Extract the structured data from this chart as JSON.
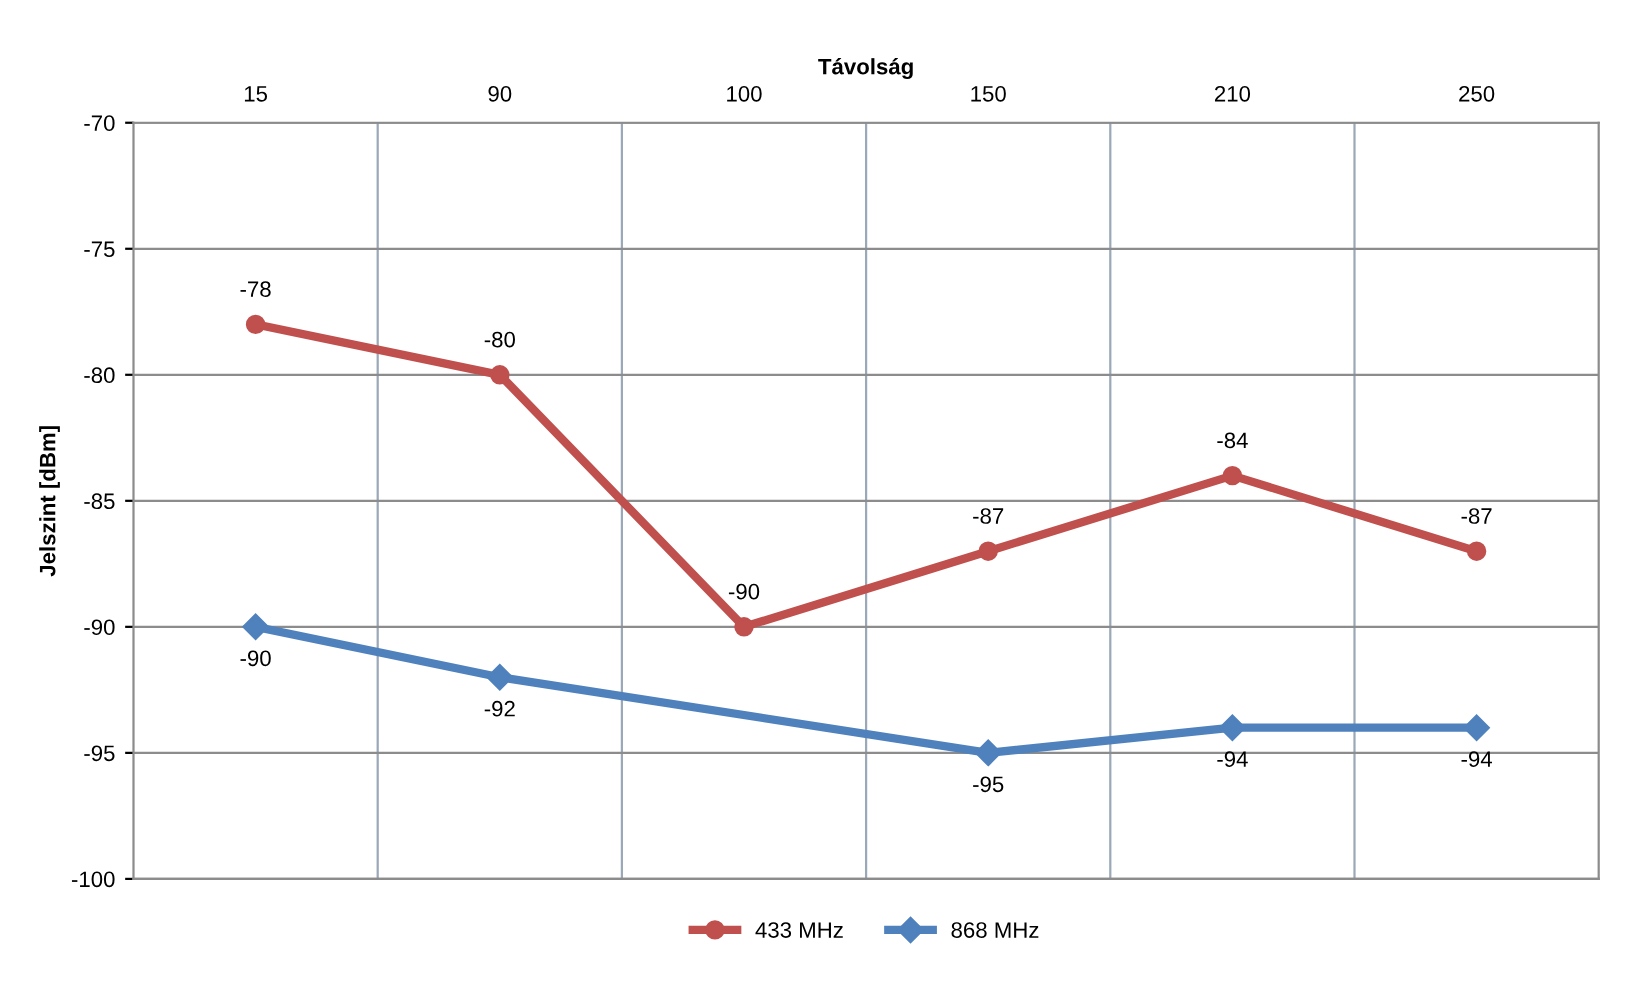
{
  "chart_data": {
    "type": "line",
    "xlabel": "Távolság",
    "ylabel": "Jelszint [dBm]",
    "categories": [
      "15",
      "90",
      "100",
      "150",
      "210",
      "250"
    ],
    "series": [
      {
        "name": "433 MHz",
        "color": "#c0504d",
        "marker": "circle",
        "values": [
          -78,
          -80,
          -90,
          -87,
          -84,
          -87
        ]
      },
      {
        "name": "868 MHz",
        "color": "#4f81bd",
        "marker": "diamond",
        "values": [
          -90,
          -92,
          null,
          -95,
          -94,
          -94
        ]
      }
    ],
    "ylim": [
      -100,
      -70
    ],
    "yticks": [
      -100,
      -95,
      -90,
      -85,
      -80,
      -75,
      -70
    ],
    "grid": true,
    "legend": "bottom",
    "data_labels": true,
    "line_style": "solid"
  }
}
